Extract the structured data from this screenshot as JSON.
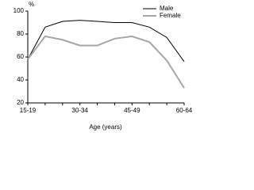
{
  "chart_data": {
    "type": "line",
    "y_label": "%",
    "x_label": "Age (years)",
    "categories": [
      "15-19",
      null,
      null,
      "30-34",
      null,
      null,
      "45-49",
      null,
      null,
      "60-64"
    ],
    "series": [
      {
        "name": "Male",
        "color": "#000000",
        "values": [
          58,
          86,
          91,
          92,
          91,
          90,
          90,
          86,
          77,
          56
        ]
      },
      {
        "name": "Female",
        "color": "#a6a6a6",
        "values": [
          58,
          78,
          75,
          70,
          70,
          76,
          78,
          73,
          57,
          33
        ]
      }
    ],
    "ylim": [
      20,
      100
    ],
    "yticks": [
      20,
      40,
      60,
      80,
      100
    ],
    "legend": "top-right"
  }
}
